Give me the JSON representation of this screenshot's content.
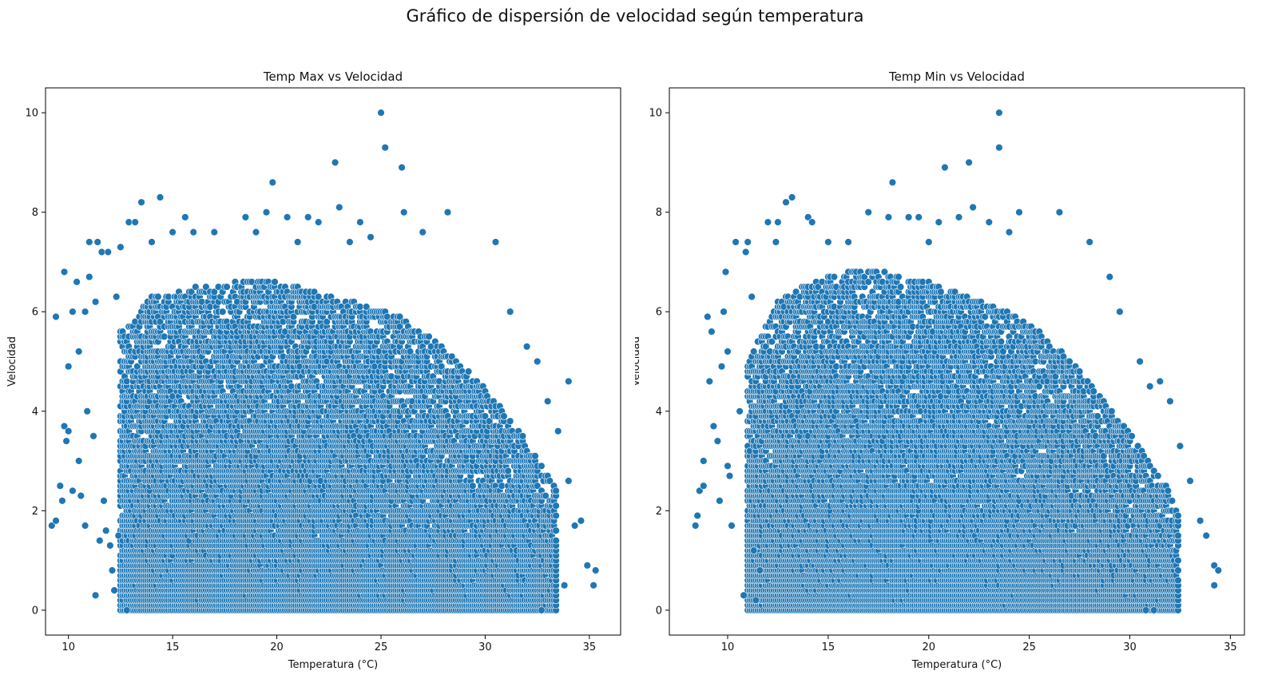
{
  "figure": {
    "suptitle": "Gráfico de dispersión de velocidad según temperatura"
  },
  "style": {
    "point_color": "#1f77b4",
    "point_edge": "#ffffff",
    "axis_color": "#000000"
  },
  "chart_data": [
    {
      "type": "scatter",
      "title": "Temp Max vs Velocidad",
      "xlabel": "Temperatura (°C)",
      "ylabel": "Velocidad",
      "xlim": [
        8.9,
        36.5
      ],
      "ylim": [
        -0.5,
        10.5
      ],
      "xticks": [
        10,
        15,
        20,
        25,
        30,
        35
      ],
      "yticks": [
        0,
        2,
        4,
        6,
        8,
        10
      ],
      "grid": false,
      "points": [
        [
          9.2,
          1.7
        ],
        [
          9.4,
          1.8
        ],
        [
          9.4,
          5.9
        ],
        [
          9.6,
          2.5
        ],
        [
          9.7,
          2.2
        ],
        [
          9.8,
          6.8
        ],
        [
          9.8,
          3.7
        ],
        [
          9.9,
          3.4
        ],
        [
          10.0,
          3.6
        ],
        [
          10.0,
          4.9
        ],
        [
          10.2,
          2.4
        ],
        [
          10.2,
          6.0
        ],
        [
          10.4,
          6.6
        ],
        [
          10.5,
          3.0
        ],
        [
          10.5,
          5.2
        ],
        [
          10.6,
          2.3
        ],
        [
          10.8,
          6.0
        ],
        [
          10.8,
          1.7
        ],
        [
          10.9,
          4.0
        ],
        [
          11.0,
          6.7
        ],
        [
          11.0,
          7.4
        ],
        [
          11.2,
          3.5
        ],
        [
          11.3,
          0.3
        ],
        [
          11.3,
          6.2
        ],
        [
          11.4,
          7.4
        ],
        [
          11.5,
          1.4
        ],
        [
          11.6,
          7.2
        ],
        [
          11.7,
          2.2
        ],
        [
          11.8,
          1.6
        ],
        [
          11.9,
          7.2
        ],
        [
          12.0,
          1.3
        ],
        [
          12.1,
          0.8
        ],
        [
          12.2,
          0.4
        ],
        [
          12.3,
          6.3
        ],
        [
          12.4,
          1.5
        ],
        [
          12.5,
          7.3
        ],
        [
          12.8,
          0.0
        ],
        [
          12.9,
          7.8
        ],
        [
          13.2,
          7.8
        ],
        [
          13.5,
          8.2
        ],
        [
          14.0,
          7.4
        ],
        [
          14.4,
          8.3
        ],
        [
          15.0,
          7.6
        ],
        [
          15.6,
          7.9
        ],
        [
          16.0,
          7.6
        ],
        [
          17.0,
          7.6
        ],
        [
          18.5,
          7.9
        ],
        [
          19.0,
          7.6
        ],
        [
          19.5,
          8.0
        ],
        [
          19.8,
          8.6
        ],
        [
          20.5,
          7.9
        ],
        [
          21.0,
          7.4
        ],
        [
          21.5,
          7.9
        ],
        [
          22.0,
          7.8
        ],
        [
          22.8,
          9.0
        ],
        [
          23.0,
          8.1
        ],
        [
          23.5,
          7.4
        ],
        [
          24.0,
          7.8
        ],
        [
          24.5,
          7.5
        ],
        [
          25.0,
          10.0
        ],
        [
          25.2,
          9.3
        ],
        [
          26.0,
          8.9
        ],
        [
          26.1,
          8.0
        ],
        [
          27.0,
          7.6
        ],
        [
          28.2,
          8.0
        ],
        [
          30.5,
          7.4
        ],
        [
          31.2,
          6.0
        ],
        [
          32.0,
          5.3
        ],
        [
          32.5,
          5.0
        ],
        [
          33.0,
          4.2
        ],
        [
          33.5,
          3.6
        ],
        [
          34.0,
          4.6
        ],
        [
          34.0,
          2.6
        ],
        [
          34.3,
          1.7
        ],
        [
          34.6,
          1.8
        ],
        [
          34.9,
          0.9
        ],
        [
          35.2,
          0.5
        ],
        [
          35.3,
          0.8
        ],
        [
          33.8,
          0.5
        ],
        [
          32.7,
          0.0
        ]
      ],
      "dense_regions": [
        {
          "x_from": 12.5,
          "x_to": 33.5,
          "y_floor": 0.0,
          "y_top_profile": [
            [
              12.5,
              5.6
            ],
            [
              14,
              6.3
            ],
            [
              16,
              6.5
            ],
            [
              18,
              6.6
            ],
            [
              20,
              6.6
            ],
            [
              22,
              6.4
            ],
            [
              24,
              6.2
            ],
            [
              26,
              5.9
            ],
            [
              28,
              5.3
            ],
            [
              30,
              4.5
            ],
            [
              32,
              3.4
            ],
            [
              33.5,
              2.4
            ]
          ]
        }
      ]
    },
    {
      "type": "scatter",
      "title": "Temp Min vs Velocidad",
      "xlabel": "Temperatura (°C)",
      "ylabel": "Velocidad",
      "xlim": [
        7.1,
        35.7
      ],
      "ylim": [
        -0.5,
        10.5
      ],
      "xticks": [
        10,
        15,
        20,
        25,
        30,
        35
      ],
      "yticks": [
        0,
        2,
        4,
        6,
        8,
        10
      ],
      "grid": false,
      "points": [
        [
          8.4,
          1.7
        ],
        [
          8.5,
          1.9
        ],
        [
          8.6,
          2.4
        ],
        [
          8.8,
          2.5
        ],
        [
          8.8,
          3.0
        ],
        [
          9.0,
          5.9
        ],
        [
          9.1,
          4.6
        ],
        [
          9.2,
          5.6
        ],
        [
          9.3,
          3.7
        ],
        [
          9.5,
          3.4
        ],
        [
          9.6,
          2.2
        ],
        [
          9.7,
          4.9
        ],
        [
          9.8,
          6.0
        ],
        [
          9.9,
          6.8
        ],
        [
          10.0,
          2.9
        ],
        [
          10.0,
          5.2
        ],
        [
          10.1,
          2.7
        ],
        [
          10.2,
          1.7
        ],
        [
          10.4,
          7.4
        ],
        [
          10.6,
          4.0
        ],
        [
          10.8,
          0.3
        ],
        [
          10.9,
          7.2
        ],
        [
          11.0,
          7.4
        ],
        [
          11.2,
          6.3
        ],
        [
          11.3,
          1.2
        ],
        [
          11.4,
          0.2
        ],
        [
          11.6,
          0.8
        ],
        [
          12.0,
          7.8
        ],
        [
          12.4,
          7.4
        ],
        [
          12.5,
          7.8
        ],
        [
          12.9,
          8.2
        ],
        [
          13.2,
          8.3
        ],
        [
          14.0,
          7.9
        ],
        [
          14.2,
          7.8
        ],
        [
          15.0,
          7.4
        ],
        [
          16.0,
          7.4
        ],
        [
          17.0,
          8.0
        ],
        [
          18.0,
          7.9
        ],
        [
          18.2,
          8.6
        ],
        [
          19.0,
          7.9
        ],
        [
          19.5,
          7.9
        ],
        [
          20.0,
          7.4
        ],
        [
          20.5,
          7.8
        ],
        [
          20.8,
          8.9
        ],
        [
          21.5,
          7.9
        ],
        [
          22.0,
          9.0
        ],
        [
          22.2,
          8.1
        ],
        [
          23.0,
          7.8
        ],
        [
          23.5,
          10.0
        ],
        [
          23.5,
          9.3
        ],
        [
          24.0,
          7.6
        ],
        [
          24.5,
          8.0
        ],
        [
          26.5,
          8.0
        ],
        [
          28.0,
          7.4
        ],
        [
          29.0,
          6.7
        ],
        [
          29.5,
          6.0
        ],
        [
          30.5,
          5.0
        ],
        [
          31.0,
          4.5
        ],
        [
          31.5,
          4.6
        ],
        [
          32.0,
          4.2
        ],
        [
          32.5,
          3.3
        ],
        [
          33.0,
          2.6
        ],
        [
          33.5,
          1.8
        ],
        [
          33.8,
          1.5
        ],
        [
          34.2,
          0.9
        ],
        [
          34.4,
          0.8
        ],
        [
          34.2,
          0.5
        ],
        [
          31.2,
          0.0
        ],
        [
          30.8,
          0.0
        ]
      ],
      "dense_regions": [
        {
          "x_from": 11.0,
          "x_to": 32.5,
          "y_floor": 0.0,
          "y_top_profile": [
            [
              11,
              5.0
            ],
            [
              12.5,
              6.2
            ],
            [
              14,
              6.6
            ],
            [
              16,
              6.8
            ],
            [
              18,
              6.8
            ],
            [
              20,
              6.6
            ],
            [
              22,
              6.3
            ],
            [
              24,
              6.0
            ],
            [
              26,
              5.5
            ],
            [
              28,
              4.6
            ],
            [
              30,
              3.6
            ],
            [
              32,
              2.4
            ],
            [
              32.5,
              2.0
            ]
          ]
        }
      ]
    }
  ]
}
